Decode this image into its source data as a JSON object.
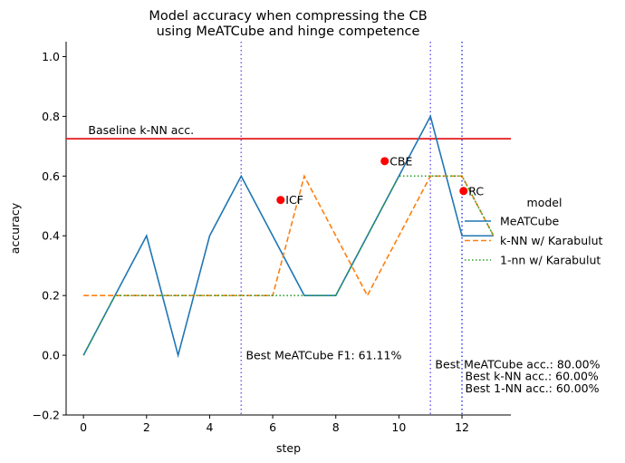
{
  "chart_data": {
    "type": "line",
    "title": [
      "Model accuracy when compressing the CB",
      "using MeATCube and hinge competence"
    ],
    "xlabel": "step",
    "ylabel": "accuracy",
    "xlim": [
      -0.55,
      13.55
    ],
    "ylim": [
      -0.2,
      1.05
    ],
    "xticks": [
      0,
      2,
      4,
      6,
      8,
      10,
      12
    ],
    "yticks": [
      -0.2,
      0.0,
      0.2,
      0.4,
      0.6,
      0.8,
      1.0
    ],
    "ytick_labels": [
      "−0.2",
      "0.0",
      "0.2",
      "0.4",
      "0.6",
      "0.8",
      "1.0"
    ],
    "grid": false,
    "series": [
      {
        "name": "MeATCube",
        "color": "#1f77b4",
        "dash": "solid",
        "x": [
          0,
          1,
          2,
          3,
          4,
          5,
          6,
          7,
          8,
          9,
          10,
          11,
          12,
          13
        ],
        "y": [
          0.0,
          0.2,
          0.4,
          0.0,
          0.4,
          0.6,
          0.4,
          0.2,
          0.2,
          0.4,
          0.6,
          0.8,
          0.4,
          0.4
        ]
      },
      {
        "name": "k-NN w/ Karabulut",
        "color": "#ff7f0e",
        "dash": "dashed",
        "x": [
          0,
          1,
          2,
          3,
          4,
          5,
          6,
          7,
          8,
          9,
          10,
          11,
          12,
          13
        ],
        "y": [
          0.2,
          0.2,
          0.2,
          0.2,
          0.2,
          0.2,
          0.2,
          0.6,
          0.4,
          0.2,
          0.4,
          0.6,
          0.6,
          0.4
        ]
      },
      {
        "name": "1-nn w/ Karabulut",
        "color": "#2ca02c",
        "dash": "dotted",
        "x": [
          0,
          1,
          2,
          3,
          4,
          5,
          6,
          7,
          8,
          9,
          10,
          11,
          12,
          13
        ],
        "y": [
          0.0,
          0.2,
          0.2,
          0.2,
          0.2,
          0.2,
          0.2,
          0.2,
          0.2,
          0.4,
          0.6,
          0.6,
          0.6,
          0.4
        ]
      }
    ],
    "baseline": {
      "y": 0.725,
      "label": "Baseline k-NN acc.",
      "color": "#e41a1c"
    },
    "vlines": [
      {
        "x": 5,
        "color": "#7b68ee"
      },
      {
        "x": 11,
        "color": "#7b68ee"
      },
      {
        "x": 12,
        "color": "#4a4ae8"
      }
    ],
    "points": [
      {
        "label": "ICF",
        "x": 6.25,
        "y": 0.52
      },
      {
        "label": "CBE",
        "x": 9.55,
        "y": 0.65
      },
      {
        "label": "RC",
        "x": 12.05,
        "y": 0.55
      }
    ],
    "point_color": "#ff0000",
    "annotations": [
      {
        "text": "Best MeATCube F1: 61.11%",
        "x": 5.15,
        "y": 0.0
      },
      {
        "text": "Best MeATCube acc.: 80.00%",
        "x": 11.15,
        "y": -0.03
      },
      {
        "text": "Best k-NN acc.: 60.00%",
        "x": 12.1,
        "y": -0.07
      },
      {
        "text": "Best 1-NN acc.: 60.00%",
        "x": 12.1,
        "y": -0.11
      }
    ],
    "legend": {
      "title": "model",
      "placement": "right"
    }
  }
}
